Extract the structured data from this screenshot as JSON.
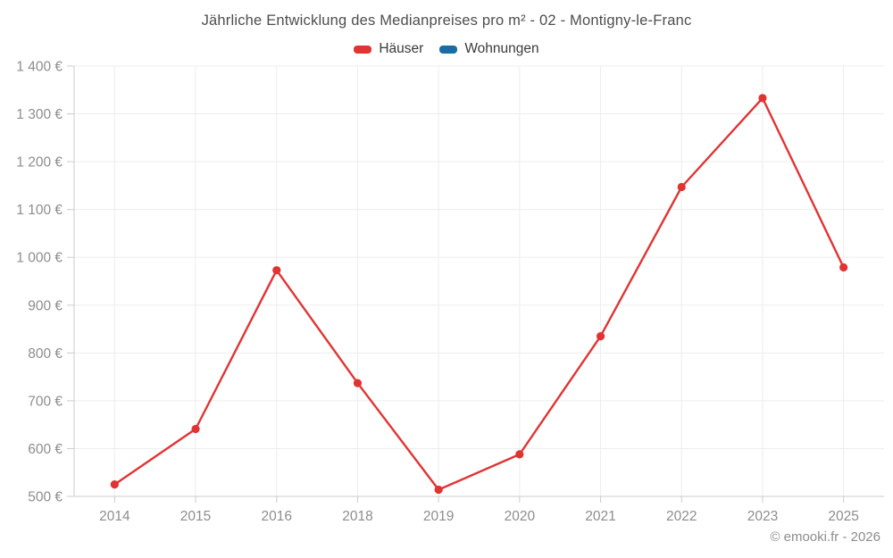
{
  "page": {
    "title": "Jährliche Entwicklung des Medianpreises pro m² - 02 - Montigny-le-Franc",
    "footer": "© emooki.fr - 2026"
  },
  "legend": {
    "items": [
      {
        "label": "Häuser",
        "color": "#e23333"
      },
      {
        "label": "Wohnungen",
        "color": "#1a6ca6"
      }
    ]
  },
  "chart_data": {
    "type": "line",
    "title": "Jährliche Entwicklung des Medianpreises pro m² - 02 - Montigny-le-Franc",
    "xlabel": "",
    "ylabel": "",
    "categories": [
      "2014",
      "2015",
      "2016",
      "2018",
      "2019",
      "2020",
      "2021",
      "2022",
      "2023",
      "2025"
    ],
    "series": [
      {
        "name": "Häuser",
        "color": "#e23333",
        "values": [
          525,
          641,
          973,
          737,
          514,
          588,
          835,
          1147,
          1333,
          979
        ]
      },
      {
        "name": "Wohnungen",
        "color": "#1a6ca6",
        "values": []
      }
    ],
    "ylim": [
      500,
      1400
    ],
    "yticks": [
      500,
      600,
      700,
      800,
      900,
      1000,
      1100,
      1200,
      1300,
      1400
    ],
    "ytick_labels": [
      "500 €",
      "600 €",
      "700 €",
      "800 €",
      "900 €",
      "1 000 €",
      "1 100 €",
      "1 200 €",
      "1 300 €",
      "1 400 €"
    ],
    "grid": true,
    "legend_position": "top",
    "colors": {
      "grid": "#ededed",
      "axis": "#cccccc",
      "tick_label": "#8d8d8d",
      "title_text": "#4e4e4e"
    }
  }
}
